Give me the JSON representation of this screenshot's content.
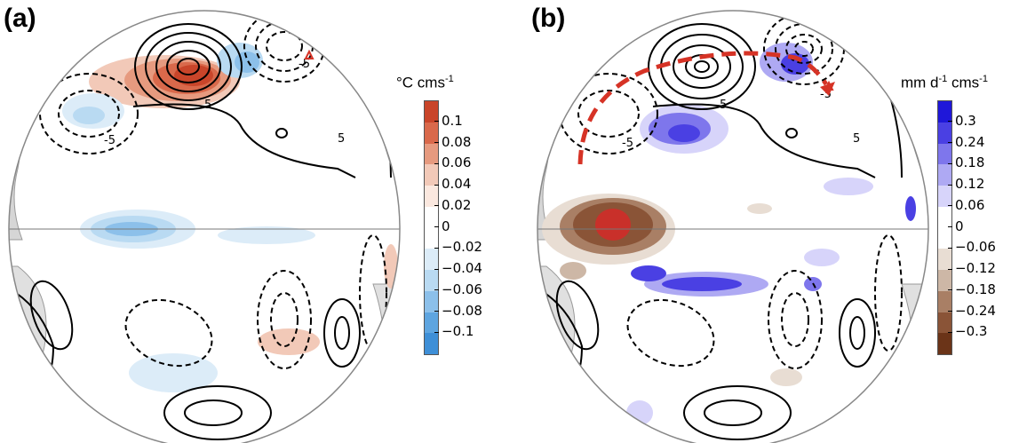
{
  "panels": [
    {
      "label": "(a)",
      "colorbar": {
        "unit_main": "°C cms",
        "unit_sup": "-1",
        "ticks": [
          "0.1",
          "0.08",
          "0.06",
          "0.04",
          "0.02",
          "0",
          "−0.02",
          "−0.04",
          "−0.06",
          "−0.08",
          "−0.1"
        ],
        "colors": [
          "#c9452a",
          "#d9694b",
          "#e69a7f",
          "#f2c9b8",
          "#fbe8df",
          "#ffffff",
          "#ffffff",
          "#dcecf8",
          "#b9daf2",
          "#8cc0ea",
          "#5ea5e0",
          "#3e8fd7"
        ]
      },
      "contour_labels": [
        "5",
        "-5",
        "-5",
        "5",
        "-5"
      ]
    },
    {
      "label": "(b)",
      "colorbar": {
        "unit_main": "mm d",
        "unit_sup1": "-1",
        "unit_mid": " cms",
        "unit_sup2": "-1",
        "ticks": [
          "0.3",
          "0.24",
          "0.18",
          "0.12",
          "0.06",
          "0",
          "−0.06",
          "−0.12",
          "−0.18",
          "−0.24",
          "−0.3"
        ],
        "colors": [
          "#1f17d9",
          "#4a40e3",
          "#7e76ec",
          "#aea9f3",
          "#d7d4fa",
          "#ffffff",
          "#ffffff",
          "#e8ddd3",
          "#cdb7a6",
          "#a97f65",
          "#8a5437",
          "#6b3418"
        ]
      },
      "contour_labels": [
        "5",
        "-5",
        "-5",
        "5",
        "5"
      ]
    }
  ],
  "colors": {
    "warm": "#d9552e",
    "cool": "#5ea5e0",
    "wet": "#2a22d9",
    "dry": "#7a4020",
    "arrow": "#d63326",
    "land": "#a8a8a8"
  }
}
